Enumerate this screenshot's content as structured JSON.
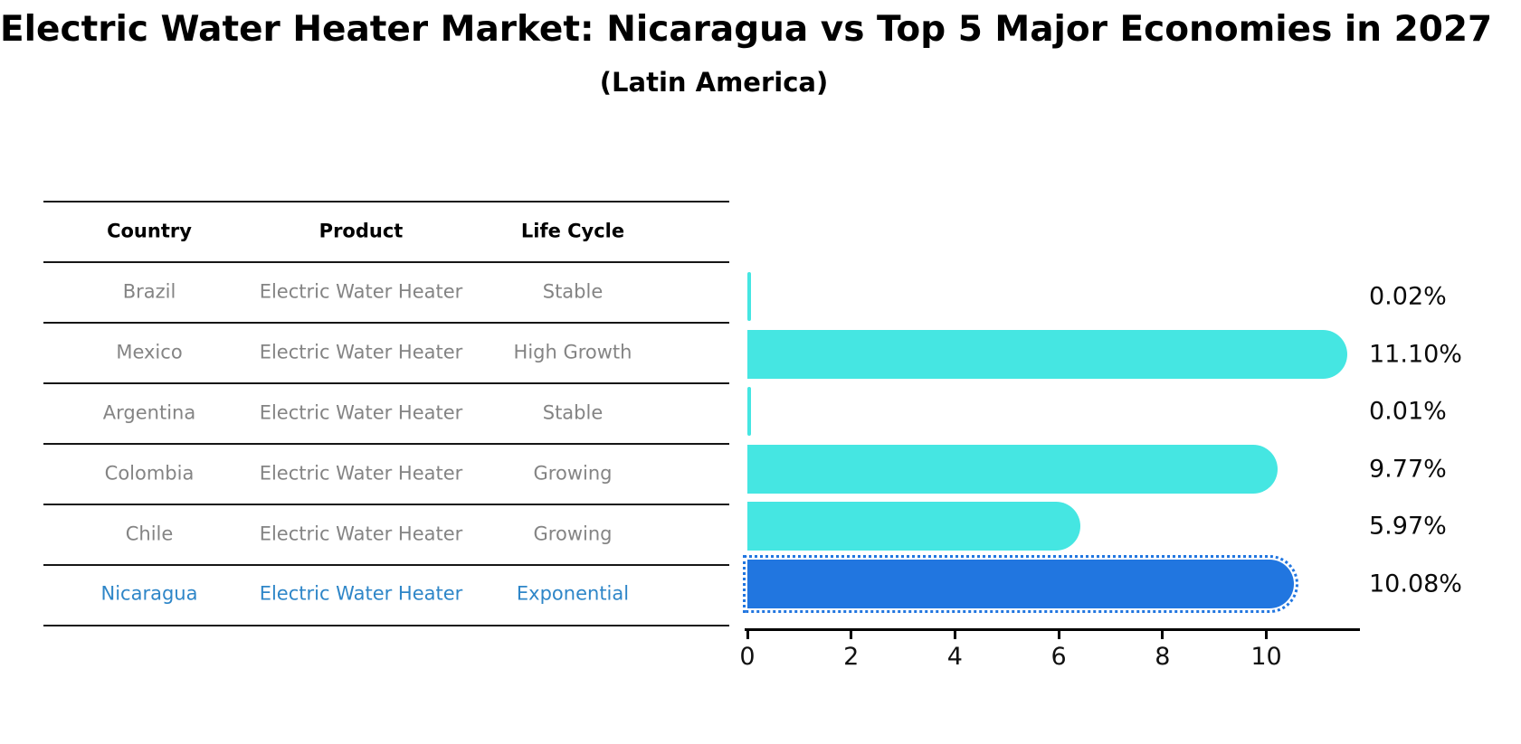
{
  "title": "Electric Water Heater Market: Nicaragua vs Top 5 Major Economies in 2027",
  "subtitle": "(Latin America)",
  "table": {
    "headers": [
      "Country",
      "Product",
      "Life Cycle"
    ],
    "rows": [
      {
        "country": "Brazil",
        "product": "Electric Water Heater",
        "life_cycle": "Stable"
      },
      {
        "country": "Mexico",
        "product": "Electric Water Heater",
        "life_cycle": "High Growth"
      },
      {
        "country": "Argentina",
        "product": "Electric Water Heater",
        "life_cycle": "Stable"
      },
      {
        "country": "Colombia",
        "product": "Electric Water Heater",
        "life_cycle": "Growing"
      },
      {
        "country": "Chile",
        "product": "Electric Water Heater",
        "life_cycle": "Growing"
      },
      {
        "country": "Nicaragua",
        "product": "Electric Water Heater",
        "life_cycle": "Exponential"
      }
    ],
    "highlight_row": 5
  },
  "chart_data": {
    "type": "bar",
    "orientation": "horizontal",
    "title": "Electric Water Heater Market: Nicaragua vs Top 5 Major Economies in 2027",
    "subtitle": "(Latin America)",
    "categories": [
      "Brazil",
      "Mexico",
      "Argentina",
      "Colombia",
      "Chile",
      "Nicaragua"
    ],
    "values": [
      0.02,
      11.1,
      0.01,
      9.77,
      5.97,
      10.08
    ],
    "value_labels": [
      "0.02%",
      "11.10%",
      "0.01%",
      "9.77%",
      "5.97%",
      "10.08%"
    ],
    "xlabel": "",
    "ylabel": "",
    "x_ticks": [
      0,
      2,
      4,
      6,
      8,
      10
    ],
    "xlim": [
      0,
      11.8
    ],
    "grid": false,
    "legend": false,
    "highlight_index": 5,
    "colors": {
      "bar": "#45e6e2",
      "highlight_bar": "#2176e0",
      "highlight_text": "#2e86c8",
      "muted_text": "#848484",
      "axis": "#000000"
    }
  }
}
